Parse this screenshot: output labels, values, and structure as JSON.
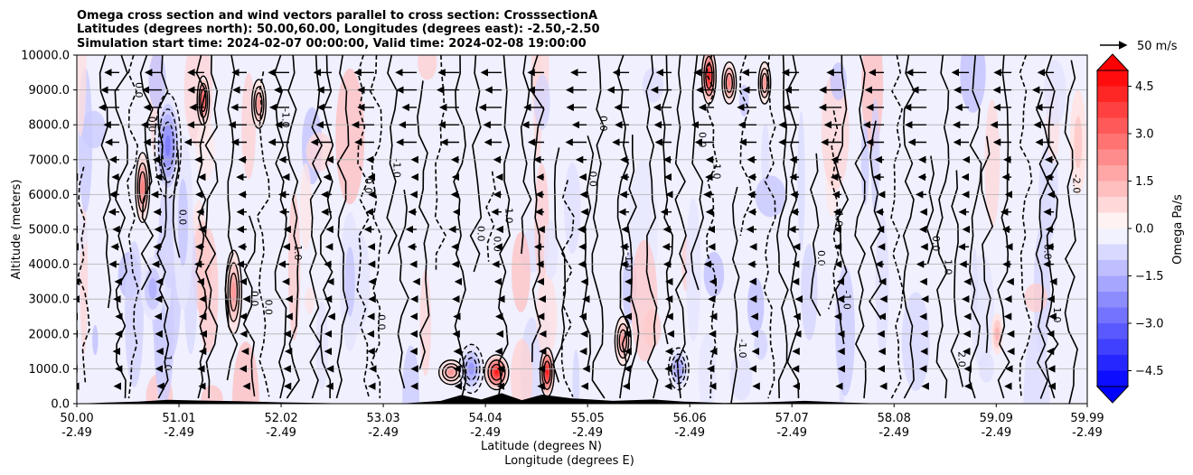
{
  "chart_data": {
    "type": "heatmap",
    "title_lines": [
      "Omega cross section and wind vectors parallel to cross section: CrosssectionA",
      "Latitudes (degrees north): 50.00,60.00, Longitudes (degrees east): -2.50,-2.50",
      "Simulation start time: 2024-02-07 00:00:00, Valid time: 2024-02-08 19:00:00"
    ],
    "ylabel": "Altitude (meters)",
    "xlabel_lines": [
      "Latitude (degrees N)",
      "Longitude (degrees E)"
    ],
    "ylim": [
      0,
      10000
    ],
    "yticks": [
      "0.0",
      "1000.0",
      "2000.0",
      "3000.0",
      "4000.0",
      "5000.0",
      "6000.0",
      "7000.0",
      "8000.0",
      "9000.0",
      "10000.0"
    ],
    "ytick_values": [
      0,
      1000,
      2000,
      3000,
      4000,
      5000,
      6000,
      7000,
      8000,
      9000,
      10000
    ],
    "xlim": [
      50.0,
      59.99
    ],
    "xticks": [
      {
        "lat": "50.00",
        "lon": "-2.49",
        "v": 50.0
      },
      {
        "lat": "51.01",
        "lon": "-2.49",
        "v": 51.01
      },
      {
        "lat": "52.02",
        "lon": "-2.49",
        "v": 52.02
      },
      {
        "lat": "53.03",
        "lon": "-2.49",
        "v": 53.03
      },
      {
        "lat": "54.04",
        "lon": "-2.49",
        "v": 54.04
      },
      {
        "lat": "55.05",
        "lon": "-2.49",
        "v": 55.05
      },
      {
        "lat": "56.06",
        "lon": "-2.49",
        "v": 56.06
      },
      {
        "lat": "57.07",
        "lon": "-2.49",
        "v": 57.07
      },
      {
        "lat": "58.08",
        "lon": "-2.49",
        "v": 58.08
      },
      {
        "lat": "59.09",
        "lon": "-2.49",
        "v": 59.09
      },
      {
        "lat": "59.99",
        "lon": "-2.49",
        "v": 59.99
      }
    ],
    "grid": true,
    "colorbar": {
      "label": "Omega Pa/s",
      "range": [
        -5,
        5
      ],
      "ticks": [
        "4.5",
        "3.0",
        "1.5",
        "0.0",
        "−1.5",
        "−3.0",
        "−4.5"
      ],
      "tick_values": [
        4.5,
        3.0,
        1.5,
        0.0,
        -1.5,
        -3.0,
        -4.5
      ],
      "colormap": "bwr",
      "extend": "both"
    },
    "reference_vector": {
      "label": "50 m/s",
      "speed": 50
    },
    "omega_features": [
      {
        "lat": 50.65,
        "alt": 6200,
        "lat_half": 0.07,
        "alt_half": 1000,
        "value": 2.5
      },
      {
        "lat": 50.75,
        "alt": 3300,
        "lat_half": 0.12,
        "alt_half": 900,
        "value": -1.5
      },
      {
        "lat": 50.9,
        "alt": 7400,
        "lat_half": 0.13,
        "alt_half": 1500,
        "value": -2.5
      },
      {
        "lat": 51.05,
        "alt": 5200,
        "lat_half": 0.1,
        "alt_half": 2500,
        "value": -1.0
      },
      {
        "lat": 51.25,
        "alt": 8700,
        "lat_half": 0.06,
        "alt_half": 700,
        "value": 3.5
      },
      {
        "lat": 51.55,
        "alt": 3200,
        "lat_half": 0.08,
        "alt_half": 1200,
        "value": 2.0
      },
      {
        "lat": 51.8,
        "alt": 8600,
        "lat_half": 0.07,
        "alt_half": 700,
        "value": 2.0
      },
      {
        "lat": 52.7,
        "alt": 3500,
        "lat_half": 0.1,
        "alt_half": 2000,
        "value": -1.0
      },
      {
        "lat": 53.7,
        "alt": 900,
        "lat_half": 0.12,
        "alt_half": 350,
        "value": 2.0
      },
      {
        "lat": 53.9,
        "alt": 1000,
        "lat_half": 0.12,
        "alt_half": 700,
        "value": -2.0
      },
      {
        "lat": 54.15,
        "alt": 900,
        "lat_half": 0.12,
        "alt_half": 500,
        "value": 4.5
      },
      {
        "lat": 54.65,
        "alt": 900,
        "lat_half": 0.07,
        "alt_half": 700,
        "value": 4.5
      },
      {
        "lat": 55.4,
        "alt": 1800,
        "lat_half": 0.08,
        "alt_half": 700,
        "value": 2.0
      },
      {
        "lat": 55.95,
        "alt": 1000,
        "lat_half": 0.1,
        "alt_half": 600,
        "value": -2.0
      },
      {
        "lat": 56.25,
        "alt": 9400,
        "lat_half": 0.07,
        "alt_half": 800,
        "value": 4.5
      },
      {
        "lat": 56.45,
        "alt": 9200,
        "lat_half": 0.07,
        "alt_half": 600,
        "value": 2.5
      },
      {
        "lat": 56.8,
        "alt": 9200,
        "lat_half": 0.06,
        "alt_half": 600,
        "value": 2.0
      },
      {
        "lat": 59.1,
        "alt": 2000,
        "lat_half": 0.06,
        "alt_half": 600,
        "value": 1.5
      },
      {
        "lat": 59.9,
        "alt": 7500,
        "lat_half": 0.08,
        "alt_half": 1500,
        "value": 1.0
      }
    ],
    "contour_labels": [
      "0.0",
      "0.0",
      "0.0",
      "0.0",
      "0.0",
      "0.0",
      "0.0",
      "0.0",
      "0.0",
      "0.0",
      "0.0",
      "0.0",
      "0.0",
      "0.0",
      "1.0",
      "1.0",
      "1.0",
      "1.0",
      "1.0",
      "-1.0",
      "-1.0",
      "-1.0",
      "-1.0",
      "-1.0",
      "-1.0",
      "2.0",
      "-2.0",
      "0.0",
      "1.0"
    ]
  }
}
